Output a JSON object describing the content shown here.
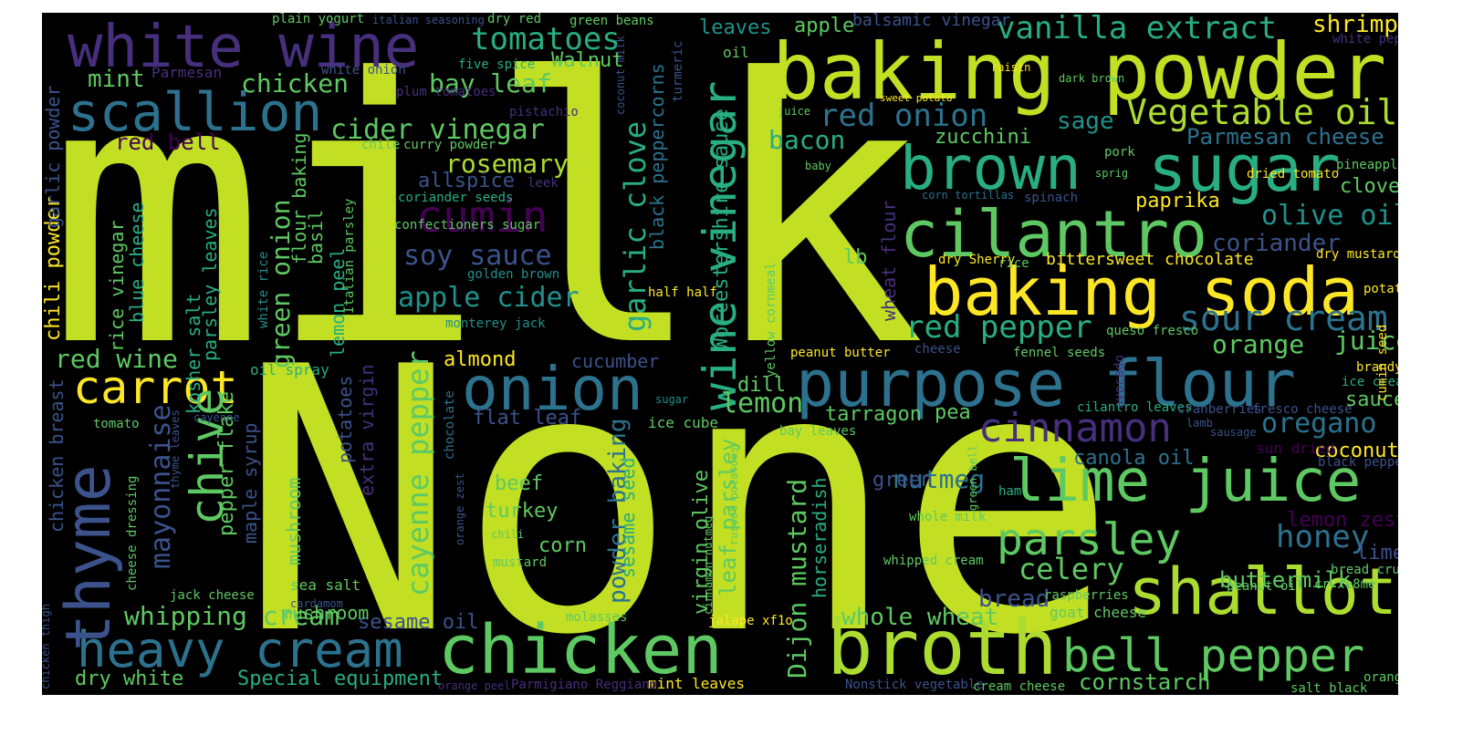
{
  "colors": {
    "background": "#000000",
    "palette": [
      "#440154",
      "#472f7d",
      "#3b528b",
      "#2c728e",
      "#21918c",
      "#28ae80",
      "#5ec962",
      "#addc30",
      "#c2df23",
      "#fde725"
    ]
  },
  "words": {
    "milk": "milk",
    "none": "None",
    "baking_powder": "baking powder",
    "white_wine": "white wine",
    "scallion": "scallion",
    "brown": "brown",
    "sugar": "sugar",
    "cilantro": "cilantro",
    "baking_soda": "baking soda",
    "purpose_flour": "purpose flour",
    "onion": "onion",
    "carrot": "carrot",
    "chicken_big": "chicken",
    "broth": "broth",
    "shallot": "shallot",
    "lime_juice": "lime juice",
    "heavy_cream": "heavy cream",
    "bell_pepper": "bell pepper",
    "parsley": "parsley",
    "cinnamon": "cinnamon",
    "cumin": "cumin",
    "thyme": "thyme",
    "chive": "chive",
    "wine_vinegar": "wine vinegar",
    "tomatoes": "tomatoes",
    "vanilla_extract": "vanilla extract",
    "vegetable_oil": "Vegetable oil",
    "red_onion": "red onion",
    "cider_vinegar": "cider vinegar",
    "soy_sauce": "soy sauce",
    "apple_cider": "apple cider",
    "rosemary": "rosemary",
    "red_pepper": "red pepper",
    "sour_cream": "sour cream",
    "garlic_clove": "garlic clove",
    "honey": "honey",
    "celery": "celery",
    "oregano": "oregano",
    "olive_oil": "olive oil",
    "juice": "juice",
    "lemon": "lemon",
    "nutmeg": "nutmeg",
    "whipping_cream": "whipping cream",
    "red_wine": "red wine",
    "mayonnaise": "mayonnaise",
    "cayenne_pepper": "cayenne pepper",
    "dijon_mustard": "Dijon mustard",
    "green_onion": "green onion",
    "shrimp": "shrimp",
    "sage": "sage",
    "bacon": "bacon",
    "chicken_small": "chicken",
    "bay_leaf": "bay leaf",
    "mint": "mint",
    "red_bell": "red bell",
    "parmesan_cheese": "Parmesan cheese",
    "coriander": "coriander",
    "orange": "orange",
    "sauce": "sauce",
    "coconut": "coconut",
    "lemon_zest": "lemon zest",
    "buttermilk": "buttermilk",
    "bread": "bread",
    "whole_wheat": "whole wheat",
    "cornstarch": "cornstarch",
    "dry_white": "dry white",
    "special_equipment": "Special equipment",
    "sesame_oil": "sesame oil",
    "apple": "apple",
    "leaves": "leaves",
    "balsamic_vinegar": "balsamic vinegar",
    "walnut": "Walnut",
    "allspice": "allspice",
    "zucchini": "zucchini",
    "paprika": "paprika",
    "clove": "clove",
    "canola_oil": "canola oil",
    "tarragon": "tarragon",
    "pea": "pea",
    "dill": "dill",
    "flat_leaf": "flat leaf",
    "cucumber": "cucumber",
    "almond": "almond",
    "beef": "beef",
    "turkey": "turkey",
    "corn": "corn",
    "green": "green",
    "lime": "lime",
    "lb": "lb",
    "bittersweet_chocolate": "bittersweet chocolate",
    "worcestershire_sauce": "Worcestershire sauce",
    "black_peppercorns": "black peppercorns",
    "powder_baking": "powder baking",
    "leaf_parsley": "leaf parsley",
    "sesame_seed": "sesame seed",
    "horseradish": "horseradish",
    "virgin_olive": "virgin olive",
    "chili_powder": "chili powder",
    "garlic_powder": "garlic powder",
    "rice_vinegar": "rice vinegar",
    "blue_cheese": "blue cheese",
    "kosher_salt": "kosher salt",
    "parsley_leaves": "parsley leaves",
    "pepper_flake": "pepper flake",
    "maple_syrup": "maple syrup",
    "flour_baking": "flour baking",
    "basil": "basil",
    "lemon_peel": "lemon peel",
    "chicken_breast": "chicken breast",
    "extra_virgin": "extra virgin",
    "potatoes": "potatoes",
    "mushroom": "mushroom",
    "wheat_flour": "wheat flour",
    "italian_parsley": "Italian parsley",
    "white_rice": "white rice",
    "plain_yogurt": "plain yogurt",
    "italian_seasoning": "italian seasoning",
    "dry_red": "dry red",
    "green_beans": "green beans",
    "five_spice": "five spice",
    "white_onion": "white onion",
    "parmesan": "Parmesan",
    "plum_tomatoes": "plum tomatoes",
    "pistachio": "pistachio",
    "chile": "chile",
    "curry_powder": "curry powder",
    "coriander_seeds": "coriander seeds",
    "leek": "leek",
    "confectioners_sugar": "confectioners sugar",
    "golden_brown": "golden brown",
    "monterey_jack": "monterey jack",
    "half_half": "half half",
    "oil_spray": "oil spray",
    "ice_cube": "ice cube",
    "sea_salt": "sea salt",
    "jack_cheese": "jack cheese",
    "cardamom": "cardamom",
    "tomato": "tomato",
    "cayenne": "cayenne",
    "chocolate": "chocolate",
    "cheese_dressing": "cheese dressing",
    "thyme_leaves": "thyme leaves",
    "orange_zest": "orange zest",
    "chili": "chili",
    "mustard": "mustard",
    "molasses": "molasses",
    "cinnamon_nutmeg": "cinnamon nutmeg",
    "russet_potatoes": "russet potatoes",
    "jalape": "jalape xf1o",
    "mint_leaves": "mint leaves",
    "orange_peel": "orange peel",
    "parmigiano": "Parmigiano Reggiano",
    "chicken_thigh": "chicken thigh",
    "sugar_small": "sugar",
    "yellow_cornmeal": "yellow cornmeal",
    "peanut_butter": "peanut butter",
    "bay_leaves": "bay leaves",
    "coconut_milk": "coconut milk",
    "turmeric": "turmeric",
    "oil": "oil",
    "juice_small": "juice",
    "baby": "baby",
    "raisin": "raisin",
    "dark_brown": "dark brown",
    "sweet_potato": "sweet potato",
    "pork": "pork",
    "sprig": "sprig",
    "corn_tortillas": "corn tortillas",
    "spinach": "spinach",
    "dry_sherry": "dry Sherry",
    "rice": "rice",
    "queso_fresco": "queso fresco",
    "cheese": "cheese",
    "fennel_seeds": "fennel seeds",
    "avocado": "avocado",
    "cilantro_leaves": "cilantro leaves",
    "cranberries": "cranberries",
    "fresco_cheese": "fresco cheese",
    "white_pepper": "white pepper",
    "pineapple": "pineapple",
    "dried_tomato": "dried tomato",
    "dry_mustard": "dry mustard",
    "potato": "potato",
    "brandy": "brandy",
    "ice_cream": "ice cream",
    "cumin_seed": "cumin seed",
    "lamb": "lamb",
    "sausage": "sausage",
    "sun_dried": "sun dried",
    "black_pepper": "black pepper",
    "green_bell": "green bell",
    "ham": "ham",
    "whole_milk": "whole milk",
    "whipped_cream": "whipped cream",
    "raspberries": "raspberries",
    "goat_cheese": "goat cheese",
    "peanut_oil": "peanut oil",
    "bread_crumbs": "bread crumbs",
    "cr_xe8me": "cr xe8me",
    "nonstick_vegetable": "Nonstick vegetable",
    "cream_cheese": "cream cheese",
    "salt_black": "salt black",
    "orange_small": "orange"
  }
}
